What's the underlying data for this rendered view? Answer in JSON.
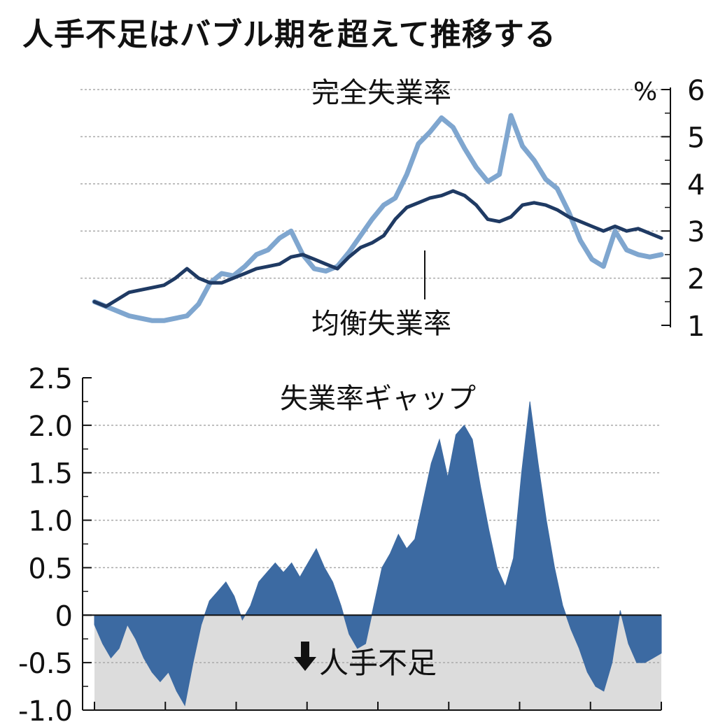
{
  "title": "人手不足はバブル期を超えて推移する",
  "colors": {
    "actual_line": "#7fa6cf",
    "equilibrium_line": "#1f3a63",
    "gap_fill": "#3c6aa2",
    "shortage_band": "#dcdcdc",
    "grid": "#aaaaaa",
    "axis": "#111111"
  },
  "chart_data": [
    {
      "type": "line",
      "unit_label": "%",
      "ylim": [
        1,
        6
      ],
      "y_ticks": [
        "6",
        "5",
        "4",
        "3",
        "2",
        "1"
      ],
      "y_tick_values": [
        6,
        5,
        4,
        3,
        2,
        1
      ],
      "grid": true,
      "x_labels_shown": false,
      "series": [
        {
          "name": "完全失業率",
          "values": [
            1.5,
            1.4,
            1.3,
            1.2,
            1.15,
            1.1,
            1.1,
            1.15,
            1.2,
            1.45,
            1.9,
            2.1,
            2.05,
            2.25,
            2.5,
            2.6,
            2.85,
            3.0,
            2.5,
            2.2,
            2.15,
            2.25,
            2.55,
            2.9,
            3.25,
            3.55,
            3.7,
            4.2,
            4.85,
            5.1,
            5.4,
            5.2,
            4.75,
            4.35,
            4.05,
            4.2,
            5.45,
            4.8,
            4.5,
            4.1,
            3.9,
            3.4,
            2.8,
            2.4,
            2.25,
            3.0,
            2.6,
            2.5,
            2.45,
            2.5
          ]
        },
        {
          "name": "均衡失業率",
          "values": [
            1.5,
            1.4,
            1.55,
            1.7,
            1.75,
            1.8,
            1.85,
            2.0,
            2.2,
            2.0,
            1.9,
            1.9,
            2.0,
            2.1,
            2.2,
            2.25,
            2.3,
            2.45,
            2.5,
            2.4,
            2.3,
            2.2,
            2.45,
            2.65,
            2.75,
            2.9,
            3.25,
            3.5,
            3.6,
            3.7,
            3.75,
            3.85,
            3.75,
            3.55,
            3.25,
            3.2,
            3.3,
            3.55,
            3.6,
            3.55,
            3.45,
            3.3,
            3.2,
            3.1,
            3.0,
            3.1,
            3.0,
            3.05,
            2.95,
            2.85
          ]
        }
      ],
      "annotations": [
        "完全失業率",
        "均衡失業率"
      ]
    },
    {
      "type": "area",
      "ylim": [
        -1.0,
        2.5
      ],
      "y_ticks": [
        "2.5",
        "2.0",
        "1.5",
        "1.0",
        "0.5",
        "0",
        "-0.5",
        "-1.0"
      ],
      "y_tick_values": [
        2.5,
        2.0,
        1.5,
        1.0,
        0.5,
        0,
        -0.5,
        -1.0
      ],
      "grid": true,
      "x_labels_shown": false,
      "series": [
        {
          "name": "失業率ギャップ",
          "values": [
            -0.1,
            -0.3,
            -0.45,
            -0.35,
            -0.1,
            -0.25,
            -0.45,
            -0.6,
            -0.7,
            -0.6,
            -0.8,
            -0.95,
            -0.5,
            -0.1,
            0.15,
            0.25,
            0.35,
            0.2,
            -0.05,
            0.1,
            0.35,
            0.45,
            0.55,
            0.45,
            0.55,
            0.4,
            0.55,
            0.7,
            0.5,
            0.35,
            0.1,
            -0.2,
            -0.35,
            -0.3,
            0.1,
            0.5,
            0.65,
            0.85,
            0.7,
            0.8,
            1.2,
            1.6,
            1.85,
            1.45,
            1.9,
            2.0,
            1.85,
            1.35,
            0.9,
            0.5,
            0.3,
            0.6,
            1.5,
            2.25,
            1.6,
            1.0,
            0.5,
            0.1,
            -0.15,
            -0.35,
            -0.6,
            -0.75,
            -0.8,
            -0.5,
            0.05,
            -0.3,
            -0.5,
            -0.5,
            -0.45,
            -0.4
          ]
        }
      ],
      "band_label": "人手不足"
    }
  ]
}
